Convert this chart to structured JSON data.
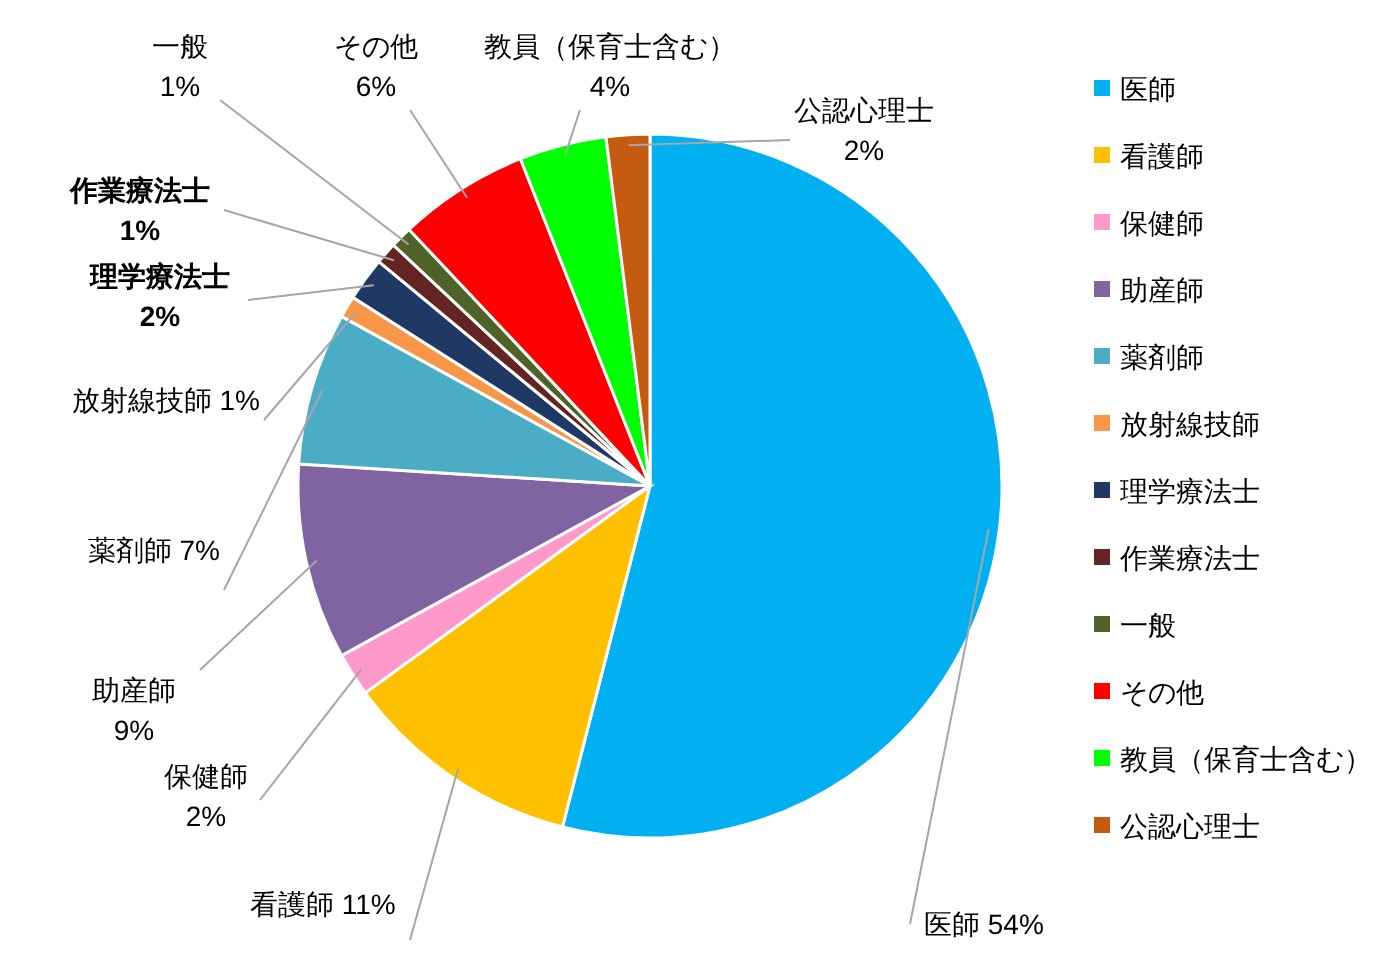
{
  "chart_data": {
    "type": "pie",
    "categories": [
      "医師",
      "看護師",
      "保健師",
      "助産師",
      "薬剤師",
      "放射線技師",
      "理学療法士",
      "作業療法士",
      "一般",
      "その他",
      "教員（保育士含む）",
      "公認心理士"
    ],
    "values": [
      54,
      11,
      2,
      9,
      7,
      1,
      2,
      1,
      1,
      6,
      4,
      2
    ],
    "value_labels": [
      "医師 54%",
      "看護師 11%",
      "保健師 2%",
      "助産師 9%",
      "薬剤師 7%",
      "放射線技師 1%",
      "理学療法士 2%",
      "作業療法士 1%",
      "一般 1%",
      "その他 6%",
      "教員（保育士含む） 4%",
      "公認心理士 2%"
    ],
    "colors": [
      "#00b0f0",
      "#ffc000",
      "#ff99cc",
      "#8064a2",
      "#4bacc6",
      "#f79646",
      "#1f3864",
      "#632523",
      "#4f6228",
      "#ff0000",
      "#00ff00",
      "#c55a11"
    ],
    "legend": "right"
  }
}
